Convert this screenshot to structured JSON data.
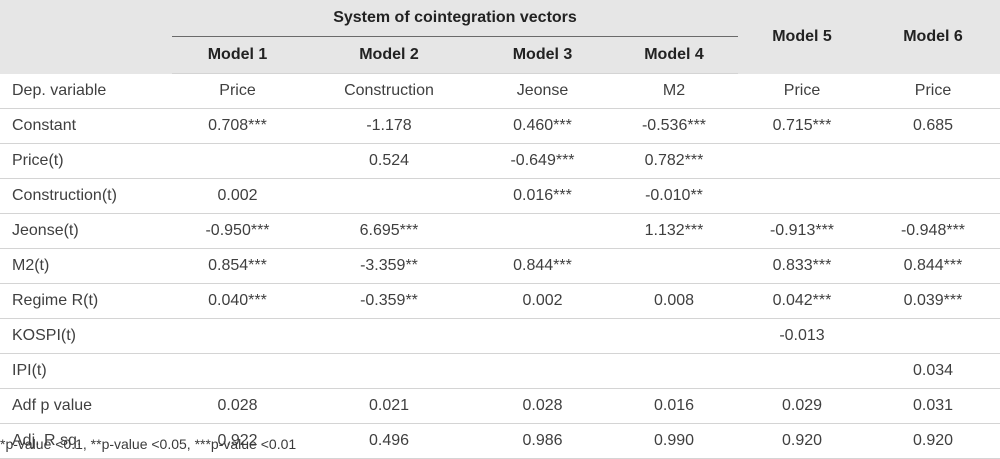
{
  "table": {
    "group_header": "System of cointegration vectors",
    "models": [
      "Model 1",
      "Model 2",
      "Model 3",
      "Model 4",
      "Model 5",
      "Model 6"
    ],
    "rows": [
      {
        "label": "Dep. variable",
        "cells": [
          "Price",
          "Construction",
          "Jeonse",
          "M2",
          "Price",
          "Price"
        ]
      },
      {
        "label": "Constant",
        "cells": [
          "0.708***",
          "-1.178",
          "0.460***",
          "-0.536***",
          "0.715***",
          "0.685"
        ]
      },
      {
        "label": "Price(t)",
        "cells": [
          "",
          "0.524",
          "-0.649***",
          "0.782***",
          "",
          ""
        ]
      },
      {
        "label": "Construction(t)",
        "cells": [
          "0.002",
          "",
          "0.016***",
          "-0.010**",
          "",
          ""
        ]
      },
      {
        "label": "Jeonse(t)",
        "cells": [
          "-0.950***",
          "6.695***",
          "",
          "1.132***",
          "-0.913***",
          "-0.948***"
        ]
      },
      {
        "label": "M2(t)",
        "cells": [
          "0.854***",
          "-3.359**",
          "0.844***",
          "",
          "0.833***",
          "0.844***"
        ]
      },
      {
        "label": "Regime R(t)",
        "cells": [
          "0.040***",
          "-0.359**",
          "0.002",
          "0.008",
          "0.042***",
          "0.039***"
        ]
      },
      {
        "label": "KOSPI(t)",
        "cells": [
          "",
          "",
          "",
          "",
          "-0.013",
          ""
        ]
      },
      {
        "label": "IPI(t)",
        "cells": [
          "",
          "",
          "",
          "",
          "",
          "0.034"
        ]
      },
      {
        "label": "Adf p value",
        "cells": [
          "0.028",
          "0.021",
          "0.028",
          "0.016",
          "0.029",
          "0.031"
        ]
      },
      {
        "label": "Adj. R sq.",
        "cells": [
          "0.922",
          "0.496",
          "0.986",
          "0.990",
          "0.920",
          "0.920"
        ]
      }
    ]
  },
  "footnote": "*p-value <0.1, **p-value <0.05, ***p-value <0.01"
}
